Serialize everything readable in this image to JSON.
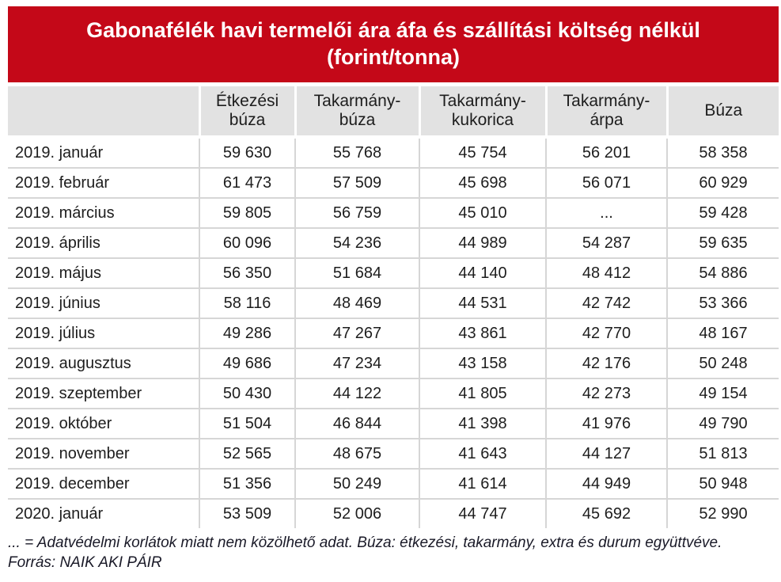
{
  "title": "Gabonafélék havi termelői ára áfa és szállítási költség nélkül (forint/tonna)",
  "colors": {
    "accent_red": "#c40818",
    "header_gray": "#e2e2e2",
    "grid_gray": "#d6d6d6",
    "text_dark": "#1d1d1d",
    "note_dark": "#191927",
    "title_text": "#ffffff"
  },
  "table": {
    "columns": [
      "",
      "Étkezési\nbúza",
      "Takarmány-\nbúza",
      "Takarmány-\nkukorica",
      "Takarmány-\nárpa",
      "Búza"
    ],
    "rows": [
      {
        "label": "2019. január",
        "values": [
          "59 630",
          "55 768",
          "45 754",
          "56 201",
          "58 358"
        ]
      },
      {
        "label": "2019. február",
        "values": [
          "61 473",
          "57 509",
          "45 698",
          "56 071",
          "60 929"
        ]
      },
      {
        "label": "2019. március",
        "values": [
          "59 805",
          "56 759",
          "45 010",
          "...",
          "59 428"
        ]
      },
      {
        "label": "2019. április",
        "values": [
          "60 096",
          "54 236",
          "44 989",
          "54 287",
          "59 635"
        ]
      },
      {
        "label": "2019. május",
        "values": [
          "56 350",
          "51 684",
          "44 140",
          "48 412",
          "54 886"
        ]
      },
      {
        "label": "2019. június",
        "values": [
          "58 116",
          "48 469",
          "44 531",
          "42 742",
          "53 366"
        ]
      },
      {
        "label": "2019. július",
        "values": [
          "49 286",
          "47 267",
          "43 861",
          "42 770",
          "48 167"
        ]
      },
      {
        "label": "2019. augusztus",
        "values": [
          "49 686",
          "47 234",
          "43 158",
          "42 176",
          "50 248"
        ]
      },
      {
        "label": "2019. szeptember",
        "values": [
          "50 430",
          "44 122",
          "41 805",
          "42 273",
          "49 154"
        ]
      },
      {
        "label": "2019. október",
        "values": [
          "51 504",
          "46 844",
          "41 398",
          "41 976",
          "49 790"
        ]
      },
      {
        "label": "2019. november",
        "values": [
          "52 565",
          "48 675",
          "41 643",
          "44 127",
          "51 813"
        ]
      },
      {
        "label": "2019. december",
        "values": [
          "51 356",
          "50 249",
          "41 614",
          "44 949",
          "50 948"
        ]
      },
      {
        "label": "2020. január",
        "values": [
          "53 509",
          "52 006",
          "44 747",
          "45 692",
          "52 990"
        ]
      }
    ]
  },
  "notes": {
    "line1": "... = Adatvédelmi korlátok miatt nem közölhető adat. Búza: étkezési, takarmány, extra és durum együttvéve.",
    "line2": "Forrás: NAIK AKI PÁIR"
  },
  "chart_data": {
    "type": "table",
    "title": "Gabonafélék havi termelői ára áfa és szállítási költség nélkül (forint/tonna)",
    "unit": "forint/tonna",
    "columns": [
      "Étkezési búza",
      "Takarmány-búza",
      "Takarmány-kukorica",
      "Takarmány-árpa",
      "Búza"
    ],
    "row_labels": [
      "2019. január",
      "2019. február",
      "2019. március",
      "2019. április",
      "2019. május",
      "2019. június",
      "2019. július",
      "2019. augusztus",
      "2019. szeptember",
      "2019. október",
      "2019. november",
      "2019. december",
      "2020. január"
    ],
    "values": [
      [
        59630,
        55768,
        45754,
        56201,
        58358
      ],
      [
        61473,
        57509,
        45698,
        56071,
        60929
      ],
      [
        59805,
        56759,
        45010,
        null,
        59428
      ],
      [
        60096,
        54236,
        44989,
        54287,
        59635
      ],
      [
        56350,
        51684,
        44140,
        48412,
        54886
      ],
      [
        58116,
        48469,
        44531,
        42742,
        53366
      ],
      [
        49286,
        47267,
        43861,
        42770,
        48167
      ],
      [
        49686,
        47234,
        43158,
        42176,
        50248
      ],
      [
        50430,
        44122,
        41805,
        42273,
        49154
      ],
      [
        51504,
        46844,
        41398,
        41976,
        49790
      ],
      [
        52565,
        48675,
        41643,
        44127,
        51813
      ],
      [
        51356,
        50249,
        41614,
        44949,
        50948
      ],
      [
        53509,
        52006,
        44747,
        45692,
        52990
      ]
    ],
    "missing_marker": "...",
    "missing_note": "Adatvédelmi korlátok miatt nem közölhető adat.",
    "source": "NAIK AKI PÁIR"
  }
}
